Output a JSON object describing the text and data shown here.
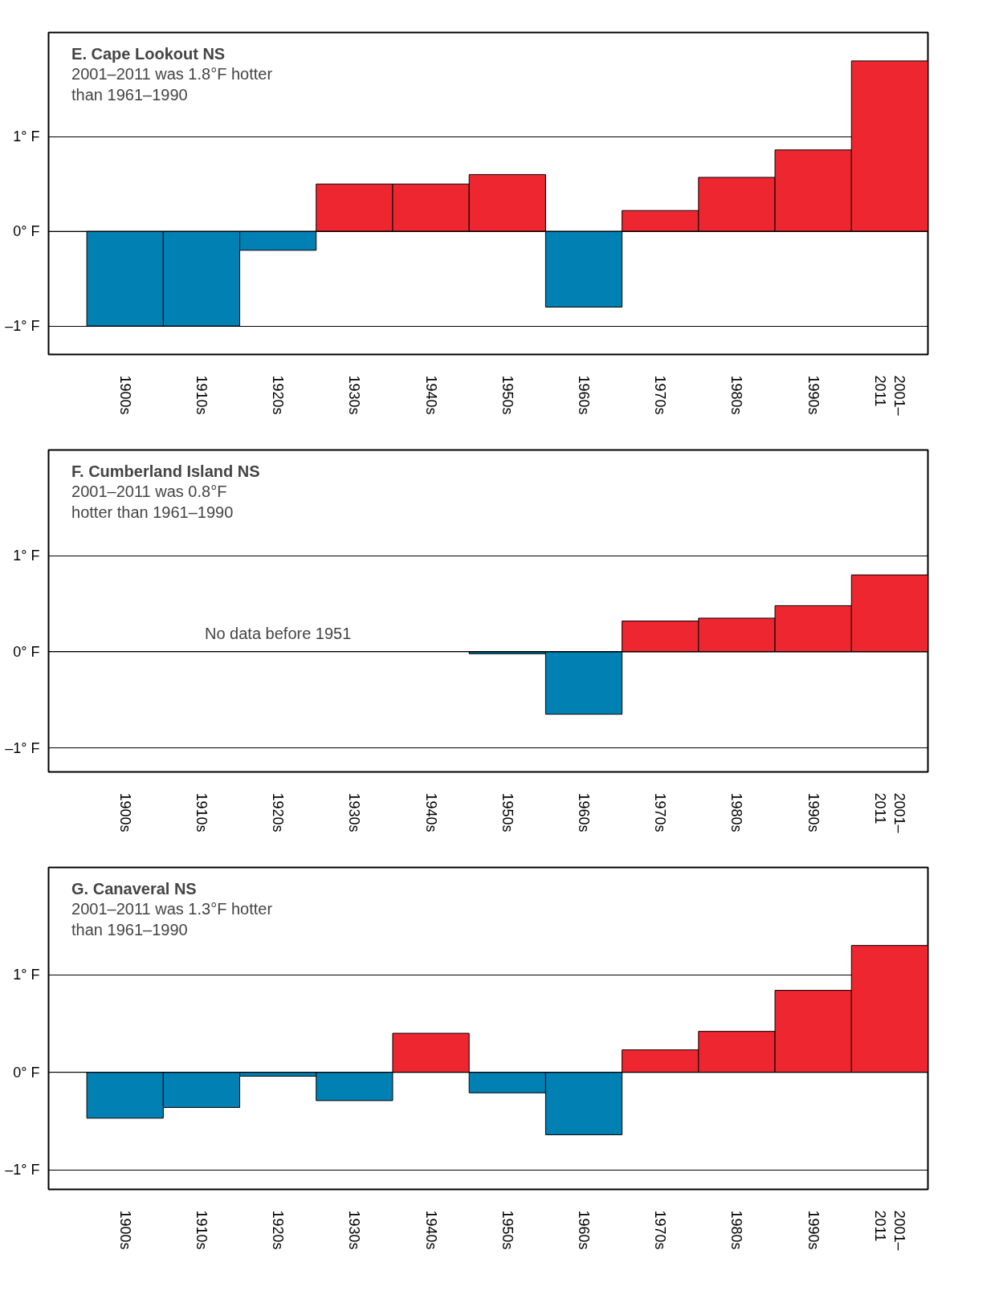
{
  "chart_data": [
    {
      "type": "bar",
      "title": "E. Cape Lookout NS",
      "subtitle": "2001–2011 was 1.8°F hotter\nthan 1961–1990",
      "categories": [
        "1900s",
        "1910s",
        "1920s",
        "1930s",
        "1940s",
        "1950s",
        "1960s",
        "1970s",
        "1980s",
        "1990s",
        "2001–\n2011"
      ],
      "values": [
        -1.0,
        -1.0,
        -0.2,
        0.5,
        0.5,
        0.6,
        -0.8,
        0.22,
        0.57,
        0.86,
        1.8
      ],
      "colors": [
        "#0080b3",
        "#0080b3",
        "#0080b3",
        "#ee2630",
        "#ee2630",
        "#ee2630",
        "#0080b3",
        "#ee2630",
        "#ee2630",
        "#ee2630",
        "#ee2630"
      ],
      "ylim": [
        -1.3,
        2.1
      ],
      "yticks": [
        {
          "value": -1,
          "label": "–1° F"
        },
        {
          "value": 0,
          "label": "0° F"
        },
        {
          "value": 1,
          "label": "1° F"
        }
      ],
      "grid": "y"
    },
    {
      "type": "bar",
      "title": "F. Cumberland Island NS",
      "subtitle": "2001–2011 was 0.8°F\nhotter than 1961–1990",
      "categories": [
        "1900s",
        "1910s",
        "1920s",
        "1930s",
        "1940s",
        "1950s",
        "1960s",
        "1970s",
        "1980s",
        "1990s",
        "2001–\n2011"
      ],
      "values": [
        null,
        null,
        null,
        null,
        null,
        -0.02,
        -0.65,
        0.32,
        0.35,
        0.48,
        0.8
      ],
      "colors": [
        null,
        null,
        null,
        null,
        null,
        "#0080b3",
        "#0080b3",
        "#ee2630",
        "#ee2630",
        "#ee2630",
        "#ee2630"
      ],
      "annotations": [
        "No data before 1951"
      ],
      "ylim": [
        -1.25,
        2.1
      ],
      "yticks": [
        {
          "value": -1,
          "label": "–1° F"
        },
        {
          "value": 0,
          "label": "0° F"
        },
        {
          "value": 1,
          "label": "1° F"
        }
      ],
      "grid": "y"
    },
    {
      "type": "bar",
      "title": "G. Canaveral NS",
      "subtitle": "2001–2011 was 1.3°F hotter\nthan 1961–1990",
      "categories": [
        "1900s",
        "1910s",
        "1920s",
        "1930s",
        "1940s",
        "1950s",
        "1960s",
        "1970s",
        "1980s",
        "1990s",
        "2001–\n2011"
      ],
      "values": [
        -0.47,
        -0.36,
        -0.04,
        -0.29,
        0.4,
        -0.21,
        -0.64,
        0.23,
        0.42,
        0.84,
        1.3
      ],
      "colors": [
        "#0080b3",
        "#0080b3",
        "#0080b3",
        "#0080b3",
        "#ee2630",
        "#0080b3",
        "#0080b3",
        "#ee2630",
        "#ee2630",
        "#ee2630",
        "#ee2630"
      ],
      "ylim": [
        -1.2,
        2.1
      ],
      "yticks": [
        {
          "value": -1,
          "label": "–1° F"
        },
        {
          "value": 0,
          "label": "0° F"
        },
        {
          "value": 1,
          "label": "1° F"
        }
      ],
      "grid": "y"
    }
  ]
}
